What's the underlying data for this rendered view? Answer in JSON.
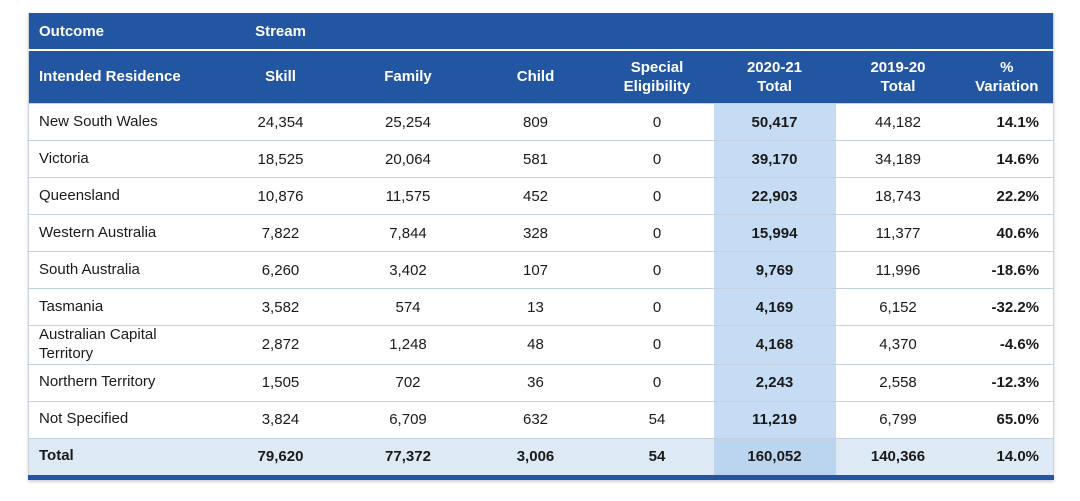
{
  "colors": {
    "header_bg": "#2256a3",
    "highlight_column_bg": "#c6dcf4",
    "total_row_bg": "#dde9f5",
    "total_highlight_bg": "#bcd5ee",
    "row_separator": "#c3d0df",
    "bottom_bar": "#2256a3",
    "header_text": "#ffffff",
    "body_text": "#1a1a1a"
  },
  "table": {
    "group_header": {
      "outcome": "Outcome",
      "stream": "Stream"
    },
    "columns": [
      {
        "lines": [
          "Intended Residence"
        ]
      },
      {
        "lines": [
          "Skill"
        ]
      },
      {
        "lines": [
          "Family"
        ]
      },
      {
        "lines": [
          "Child"
        ]
      },
      {
        "lines": [
          "Special",
          "Eligibility"
        ]
      },
      {
        "lines": [
          "2020-21",
          "Total"
        ]
      },
      {
        "lines": [
          "2019-20",
          "Total"
        ]
      },
      {
        "lines": [
          "%",
          "Variation"
        ]
      }
    ],
    "rows": [
      {
        "name": "New South Wales",
        "skill": "24,354",
        "family": "25,254",
        "child": "809",
        "special_eligibility": "0",
        "total_2020_21": "50,417",
        "total_2019_20": "44,182",
        "variation": "14.1%"
      },
      {
        "name": "Victoria",
        "skill": "18,525",
        "family": "20,064",
        "child": "581",
        "special_eligibility": "0",
        "total_2020_21": "39,170",
        "total_2019_20": "34,189",
        "variation": "14.6%"
      },
      {
        "name": "Queensland",
        "skill": "10,876",
        "family": "11,575",
        "child": "452",
        "special_eligibility": "0",
        "total_2020_21": "22,903",
        "total_2019_20": "18,743",
        "variation": "22.2%"
      },
      {
        "name": "Western Australia",
        "skill": "7,822",
        "family": "7,844",
        "child": "328",
        "special_eligibility": "0",
        "total_2020_21": "15,994",
        "total_2019_20": "11,377",
        "variation": "40.6%"
      },
      {
        "name": "South Australia",
        "skill": "6,260",
        "family": "3,402",
        "child": "107",
        "special_eligibility": "0",
        "total_2020_21": "9,769",
        "total_2019_20": "11,996",
        "variation": "-18.6%"
      },
      {
        "name": "Tasmania",
        "skill": "3,582",
        "family": "574",
        "child": "13",
        "special_eligibility": "0",
        "total_2020_21": "4,169",
        "total_2019_20": "6,152",
        "variation": "-32.2%"
      },
      {
        "name": "Australian Capital Territory",
        "skill": "2,872",
        "family": "1,248",
        "child": "48",
        "special_eligibility": "0",
        "total_2020_21": "4,168",
        "total_2019_20": "4,370",
        "variation": "-4.6%"
      },
      {
        "name": "Northern Territory",
        "skill": "1,505",
        "family": "702",
        "child": "36",
        "special_eligibility": "0",
        "total_2020_21": "2,243",
        "total_2019_20": "2,558",
        "variation": "-12.3%"
      },
      {
        "name": "Not Specified",
        "skill": "3,824",
        "family": "6,709",
        "child": "632",
        "special_eligibility": "54",
        "total_2020_21": "11,219",
        "total_2019_20": "6,799",
        "variation": "65.0%"
      }
    ],
    "total_row": {
      "name": "Total",
      "skill": "79,620",
      "family": "77,372",
      "child": "3,006",
      "special_eligibility": "54",
      "total_2020_21": "160,052",
      "total_2019_20": "140,366",
      "variation": "14.0%"
    }
  },
  "chart_data": {
    "type": "table",
    "title": "",
    "group_columns": [
      "Outcome",
      "Stream"
    ],
    "columns": [
      "Intended Residence",
      "Skill",
      "Family",
      "Child",
      "Special Eligibility",
      "2020-21 Total",
      "2019-20 Total",
      "% Variation"
    ],
    "rows": [
      [
        "New South Wales",
        24354,
        25254,
        809,
        0,
        50417,
        44182,
        14.1
      ],
      [
        "Victoria",
        18525,
        20064,
        581,
        0,
        39170,
        34189,
        14.6
      ],
      [
        "Queensland",
        10876,
        11575,
        452,
        0,
        22903,
        18743,
        22.2
      ],
      [
        "Western Australia",
        7822,
        7844,
        328,
        0,
        15994,
        11377,
        40.6
      ],
      [
        "South Australia",
        6260,
        3402,
        107,
        0,
        9769,
        11996,
        -18.6
      ],
      [
        "Tasmania",
        3582,
        574,
        13,
        0,
        4169,
        6152,
        -32.2
      ],
      [
        "Australian Capital Territory",
        2872,
        1248,
        48,
        0,
        4168,
        4370,
        -4.6
      ],
      [
        "Northern Territory",
        1505,
        702,
        36,
        0,
        2243,
        2558,
        -12.3
      ],
      [
        "Not Specified",
        3824,
        6709,
        632,
        54,
        11219,
        6799,
        65.0
      ]
    ],
    "total_row": [
      "Total",
      79620,
      77372,
      3006,
      54,
      160052,
      140366,
      14.0
    ],
    "layout_hints": {
      "highlighted_column": "2020-21 Total",
      "bold_columns": [
        "2020-21 Total",
        "% Variation"
      ],
      "variation_unit": "%"
    }
  }
}
